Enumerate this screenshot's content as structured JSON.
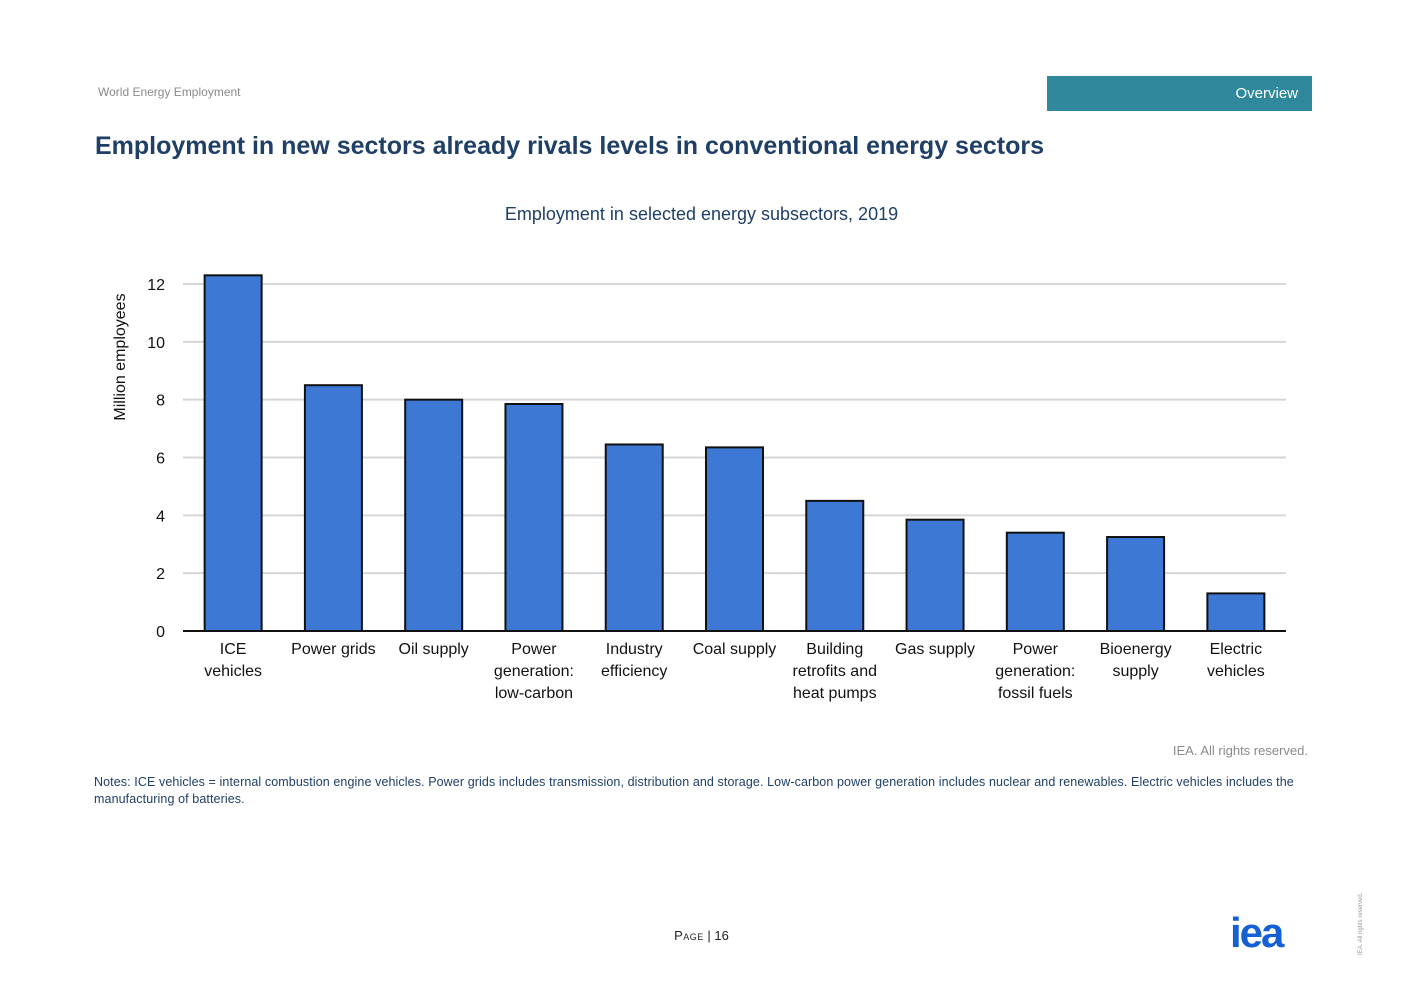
{
  "header": {
    "running_title": "World Energy Employment",
    "section_label": "Overview"
  },
  "page_title": "Employment in new sectors already rivals levels in conventional energy sectors",
  "chart_data": {
    "type": "bar",
    "title": "Employment in selected energy subsectors, 2019",
    "ylabel": "Million employees",
    "xlabel": "",
    "ylim": [
      0,
      12
    ],
    "yticks": [
      0,
      2,
      4,
      6,
      8,
      10,
      12
    ],
    "grid": true,
    "bar_color": "#3d78d4",
    "categories": [
      [
        "ICE",
        "vehicles"
      ],
      [
        "Power grids"
      ],
      [
        "Oil supply"
      ],
      [
        "Power",
        "generation:",
        "low-carbon"
      ],
      [
        "Industry",
        "efficiency"
      ],
      [
        "Coal supply"
      ],
      [
        "Building",
        "retrofits and",
        "heat pumps"
      ],
      [
        "Gas supply"
      ],
      [
        "Power",
        "generation:",
        "fossil fuels"
      ],
      [
        "Bioenergy",
        "supply"
      ],
      [
        "Electric",
        "vehicles"
      ]
    ],
    "values": [
      12.3,
      8.5,
      8.0,
      7.85,
      6.45,
      6.35,
      4.5,
      3.85,
      3.4,
      3.25,
      1.3
    ]
  },
  "rights_text": "IEA. All rights reserved.",
  "notes_text": "Notes: ICE vehicles = internal combustion engine vehicles. Power grids includes transmission, distribution and storage. Low-carbon power generation includes nuclear and renewables. Electric vehicles includes the manufacturing of batteries.",
  "footer": {
    "page_word": "Page",
    "page_sep": "|",
    "page_number": "16",
    "logo_text": "iea",
    "vertical_rights": "IEA. All rights reserved."
  }
}
